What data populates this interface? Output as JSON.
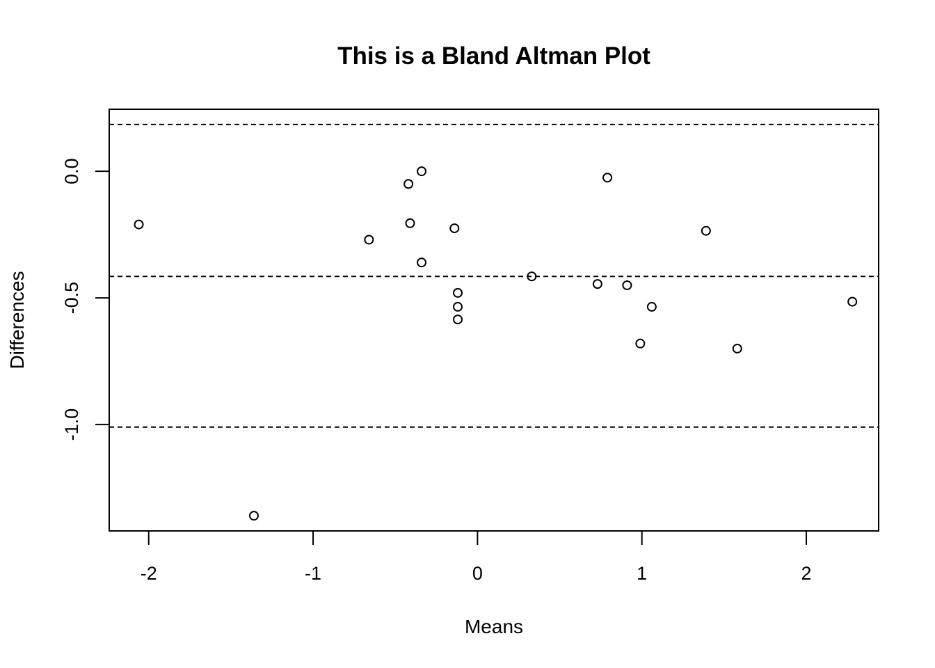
{
  "chart_data": {
    "type": "scatter",
    "title": "This is a Bland Altman Plot",
    "xlabel": "Means",
    "ylabel": "Differences",
    "xlim": [
      -2.24,
      2.44
    ],
    "ylim": [
      -1.42,
      0.245
    ],
    "x_ticks": [
      -2,
      -1,
      0,
      1,
      2
    ],
    "y_ticks": [
      0.0,
      -0.5,
      -1.0
    ],
    "x_tick_labels": [
      "-2",
      "-1",
      "0",
      "1",
      "2"
    ],
    "y_tick_labels": [
      "0.0",
      "-0.5",
      "-1.0"
    ],
    "reference_lines": [
      0.185,
      -0.415,
      -1.01
    ],
    "grid": false,
    "points": {
      "x": [
        -2.06,
        -1.36,
        -0.66,
        -0.42,
        -0.41,
        -0.34,
        -0.34,
        -0.14,
        -0.12,
        -0.12,
        -0.12,
        0.33,
        0.73,
        0.79,
        0.91,
        0.99,
        1.06,
        1.39,
        1.58,
        2.28
      ],
      "y": [
        -0.21,
        -1.36,
        -0.27,
        -0.05,
        -0.205,
        0.0,
        -0.36,
        -0.225,
        -0.48,
        -0.535,
        -0.585,
        -0.415,
        -0.445,
        -0.025,
        -0.45,
        -0.68,
        -0.535,
        -0.235,
        -0.7,
        -0.515
      ]
    }
  }
}
